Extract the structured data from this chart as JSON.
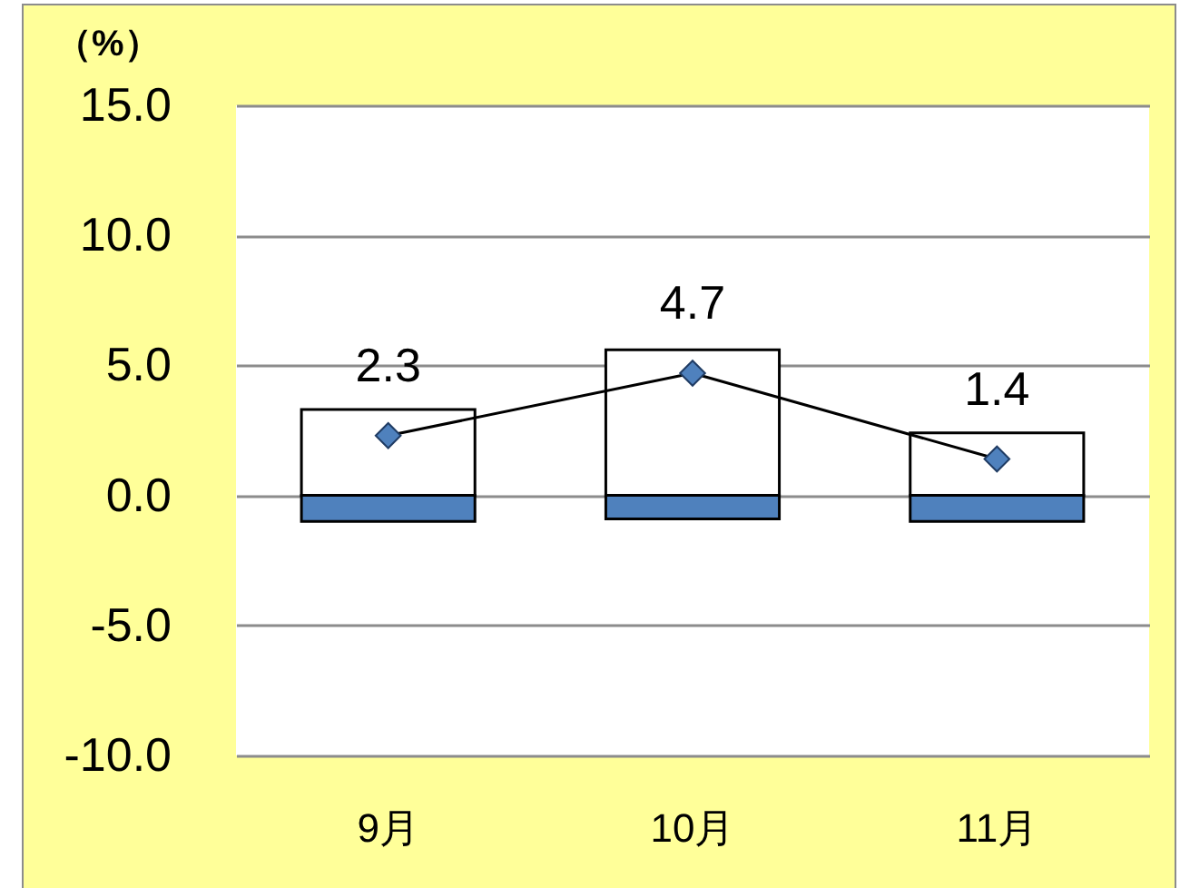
{
  "chart_data": {
    "type": "bar",
    "ylabel": "（%）",
    "categories": [
      "9月",
      "10月",
      "11月"
    ],
    "stacked": true,
    "series": [
      {
        "color": "#ffffff",
        "values": [
          3.3,
          5.6,
          2.4
        ]
      },
      {
        "color": "#4f81bd",
        "values": [
          -1.0,
          -0.9,
          -1.0
        ]
      },
      {
        "type": "line",
        "color": "#4f81bd",
        "values": [
          2.3,
          4.7,
          1.4
        ],
        "value_labels": [
          "2.3",
          "4.7",
          "1.4"
        ]
      }
    ],
    "ylim": [
      -10,
      15
    ],
    "yticks": [
      {
        "value": -10,
        "label": "-10.0"
      },
      {
        "value": -5,
        "label": "-5.0"
      },
      {
        "value": 0,
        "label": "0.0"
      },
      {
        "value": 5,
        "label": "5.0"
      },
      {
        "value": 10,
        "label": "10.0"
      },
      {
        "value": 15,
        "label": "15.0"
      }
    ],
    "grid": "y",
    "marker": "diamond"
  }
}
